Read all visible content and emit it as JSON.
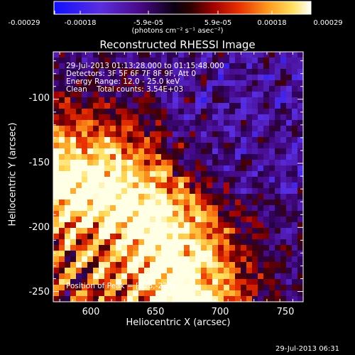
{
  "colorbar": {
    "tick_labels": [
      "-0.00029",
      "-0.00018",
      "-5.9e-05",
      "5.9e-05",
      "0.00018",
      "0.00029"
    ],
    "units": "(photons cm⁻² s⁻¹ asec⁻²)",
    "colors": [
      "#0000ff",
      "#6a2bd6",
      "#3a006a",
      "#000000",
      "#7a0000",
      "#e01000",
      "#ff8000",
      "#ffd84a",
      "#ffffff"
    ]
  },
  "plot": {
    "title": "Reconstructed RHESSI Image",
    "xlabel": "Heliocentric X (arcsec)",
    "ylabel": "Heliocentric Y (arcsec)",
    "xlim": [
      570,
      763
    ],
    "ylim": [
      -258,
      -63
    ],
    "x_ticks": [
      "600",
      "650",
      "700",
      "750"
    ],
    "y_ticks": [
      "-100",
      "-150",
      "-200",
      "-250"
    ]
  },
  "annotations": {
    "line1": "29-Jul-2013 01:13:28.000 to 01:15:48.000",
    "line2": "Detectors: 3F 5F 6F 7F 8F 9F, Att 0",
    "line3": "Energy Range: 12.0 - 25.0 keV",
    "line4": "Clean    Total counts: 3.54E+03",
    "peak": "Position of Peak = [628,-225]"
  },
  "timestamp": "29-Jul-2013 06:31"
}
